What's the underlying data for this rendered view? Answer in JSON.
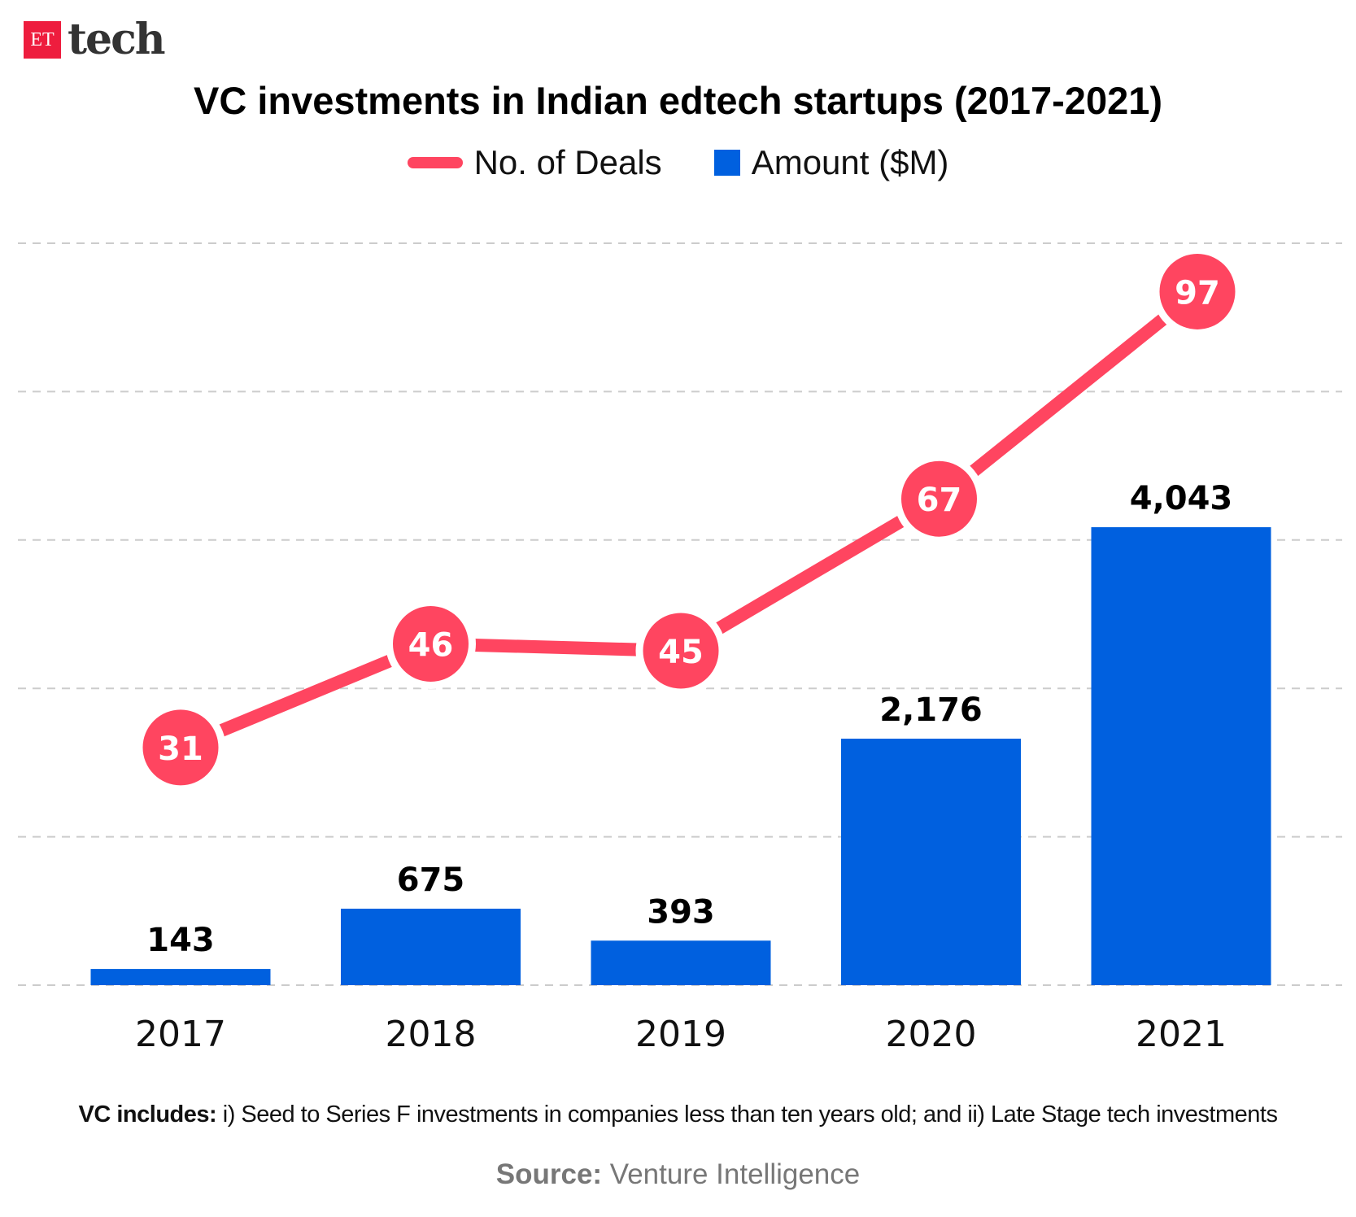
{
  "logo": {
    "et": "ET",
    "tech": "tech"
  },
  "colors": {
    "deals": "#ff4560",
    "amount": "#0060df",
    "grid": "#cccccc"
  },
  "chart_data": {
    "type": "bar+line",
    "title": "VC investments in Indian edtech startups (2017-2021)",
    "categories": [
      "2017",
      "2018",
      "2019",
      "2020",
      "2021"
    ],
    "legend_placement": "top-center",
    "grid": true,
    "series": [
      {
        "name": "No. of Deals",
        "type": "line",
        "values": [
          31,
          46,
          45,
          67,
          97
        ],
        "labels": [
          "31",
          "46",
          "45",
          "67",
          "97"
        ],
        "ylim": [
          -3.4,
          104
        ]
      },
      {
        "name": "Amount ($M)",
        "type": "bar",
        "values": [
          143,
          675,
          393,
          2176,
          4043
        ],
        "labels": [
          "143",
          "675",
          "393",
          "2,176",
          "4,043"
        ],
        "ylim": [
          0,
          6550
        ]
      }
    ]
  },
  "footnote": {
    "bold": "VC includes:",
    "text": " i) Seed to Series F investments in companies less than ten years old; and ii) Late Stage tech investments"
  },
  "source": {
    "bold": "Source:",
    "text": " Venture Intelligence"
  }
}
